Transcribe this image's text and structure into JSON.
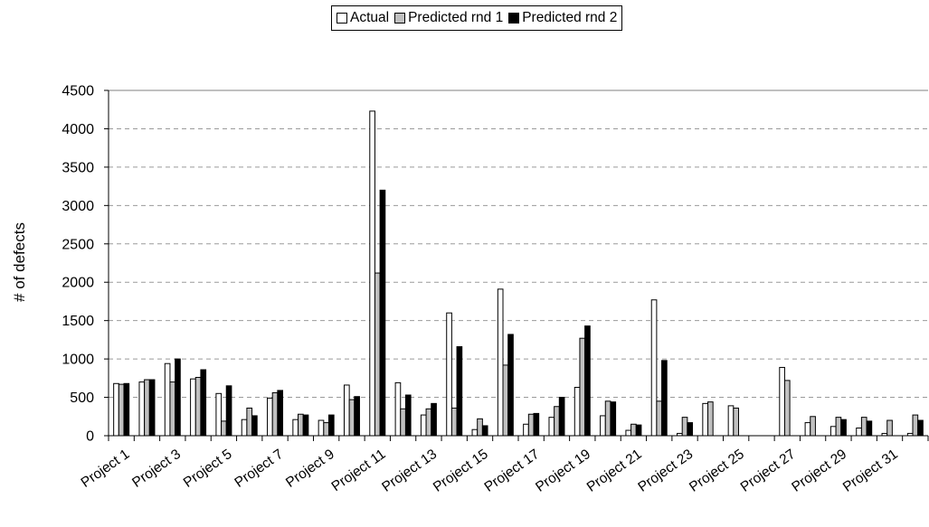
{
  "chart_data": {
    "type": "bar",
    "title": "",
    "xlabel": "",
    "ylabel": "# of defects",
    "ylim": [
      0,
      4500
    ],
    "yticks": [
      0,
      500,
      1000,
      1500,
      2000,
      2500,
      3000,
      3500,
      4000,
      4500
    ],
    "grid": "horizontal dashed",
    "legend_position": "top",
    "categories": [
      "Project 1",
      "Project 2",
      "Project 3",
      "Project 4",
      "Project 5",
      "Project 6",
      "Project 7",
      "Project 8",
      "Project 9",
      "Project 10",
      "Project 11",
      "Project 12",
      "Project 13",
      "Project 14",
      "Project 15",
      "Project 16",
      "Project 17",
      "Project 18",
      "Project 19",
      "Project 20",
      "Project 21",
      "Project 22",
      "Project 23",
      "Project 24",
      "Project 25",
      "Project 26",
      "Project 27",
      "Project 28",
      "Project 29",
      "Project 30",
      "Project 31",
      "Project 32"
    ],
    "visible_tick_labels": [
      "Project 1",
      "Project 3",
      "Project 5",
      "Project 7",
      "Project 9",
      "Project 11",
      "Project 13",
      "Project 15",
      "Project 17",
      "Project 19",
      "Project 21",
      "Project 23",
      "Project 25",
      "Project 27",
      "Project 29",
      "Project 31"
    ],
    "series": [
      {
        "name": "Actual",
        "color": "#ffffff",
        "values": [
          680,
          700,
          940,
          740,
          550,
          210,
          490,
          210,
          200,
          660,
          4230,
          690,
          270,
          1600,
          80,
          1910,
          150,
          240,
          630,
          260,
          70,
          1770,
          30,
          420,
          390,
          0,
          890,
          170,
          120,
          100,
          30,
          30
        ]
      },
      {
        "name": "Predicted rnd 1",
        "color": "#c0c0c0",
        "values": [
          670,
          730,
          700,
          760,
          190,
          360,
          560,
          280,
          170,
          470,
          2120,
          350,
          350,
          360,
          220,
          920,
          280,
          380,
          1270,
          450,
          150,
          450,
          240,
          440,
          360,
          0,
          720,
          250,
          240,
          240,
          200,
          270
        ]
      },
      {
        "name": "Predicted rnd 2",
        "color": "#000000",
        "values": [
          680,
          730,
          1000,
          860,
          650,
          260,
          590,
          270,
          270,
          510,
          3200,
          530,
          420,
          1160,
          130,
          1320,
          290,
          500,
          1430,
          440,
          140,
          980,
          170,
          0,
          0,
          0,
          0,
          0,
          210,
          190,
          0,
          200
        ]
      }
    ]
  }
}
